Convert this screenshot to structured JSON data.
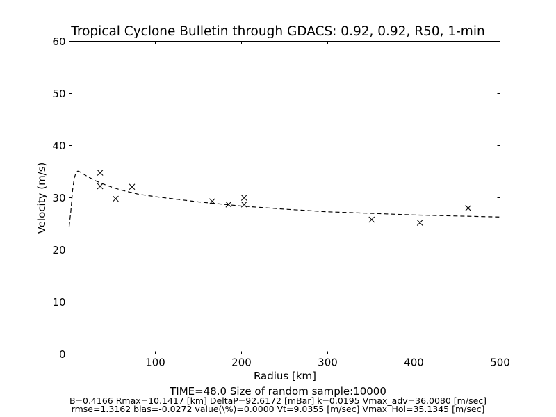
{
  "chart_data": {
    "type": "scatter",
    "title": "Tropical Cyclone Bulletin through GDACS: 0.92, 0.92, R50, 1-min",
    "xlabel": "Radius [km]",
    "ylabel": "Velocity (m/s)",
    "xlim": [
      0,
      500
    ],
    "ylim": [
      0,
      60
    ],
    "xticks": [
      100,
      200,
      300,
      400,
      500
    ],
    "yticks": [
      0,
      10,
      20,
      30,
      40,
      50,
      60
    ],
    "grid": false,
    "series": [
      {
        "style": "markers-x",
        "color": "#000000",
        "x": [
          36,
          36,
          54,
          73,
          166,
          185,
          203,
          203,
          351,
          407,
          463
        ],
        "y": [
          34.8,
          32.2,
          29.8,
          32.1,
          29.3,
          28.7,
          30.0,
          28.7,
          25.8,
          25.2,
          28.0
        ]
      },
      {
        "style": "dashed-line",
        "color": "#000000",
        "x": [
          0,
          2,
          4,
          6,
          8,
          10.1,
          12,
          15,
          20,
          30,
          40,
          50,
          60,
          70,
          80,
          100,
          120,
          150,
          200,
          250,
          300,
          350,
          400,
          450,
          500
        ],
        "y": [
          24.5,
          27.5,
          31.5,
          33.8,
          34.8,
          35.1,
          35.0,
          34.7,
          34.2,
          33.3,
          32.6,
          32.0,
          31.5,
          31.1,
          30.7,
          30.2,
          29.8,
          29.2,
          28.4,
          27.8,
          27.3,
          27.0,
          26.7,
          26.5,
          26.3
        ]
      }
    ]
  },
  "footer": {
    "line1": "TIME=48.0      Size of random sample:10000",
    "line2": "B=0.4166 Rmax=10.1417 [km]  DeltaP=92.6172 [mBar] k=0.0195 Vmax_adv=36.0080 [m/sec]",
    "line3": "rmse=1.3162 bias=-0.0272 value(\\%)=0.0000 Vt=9.0355 [m/sec] Vmax_Hol=35.1345 [m/sec]"
  }
}
